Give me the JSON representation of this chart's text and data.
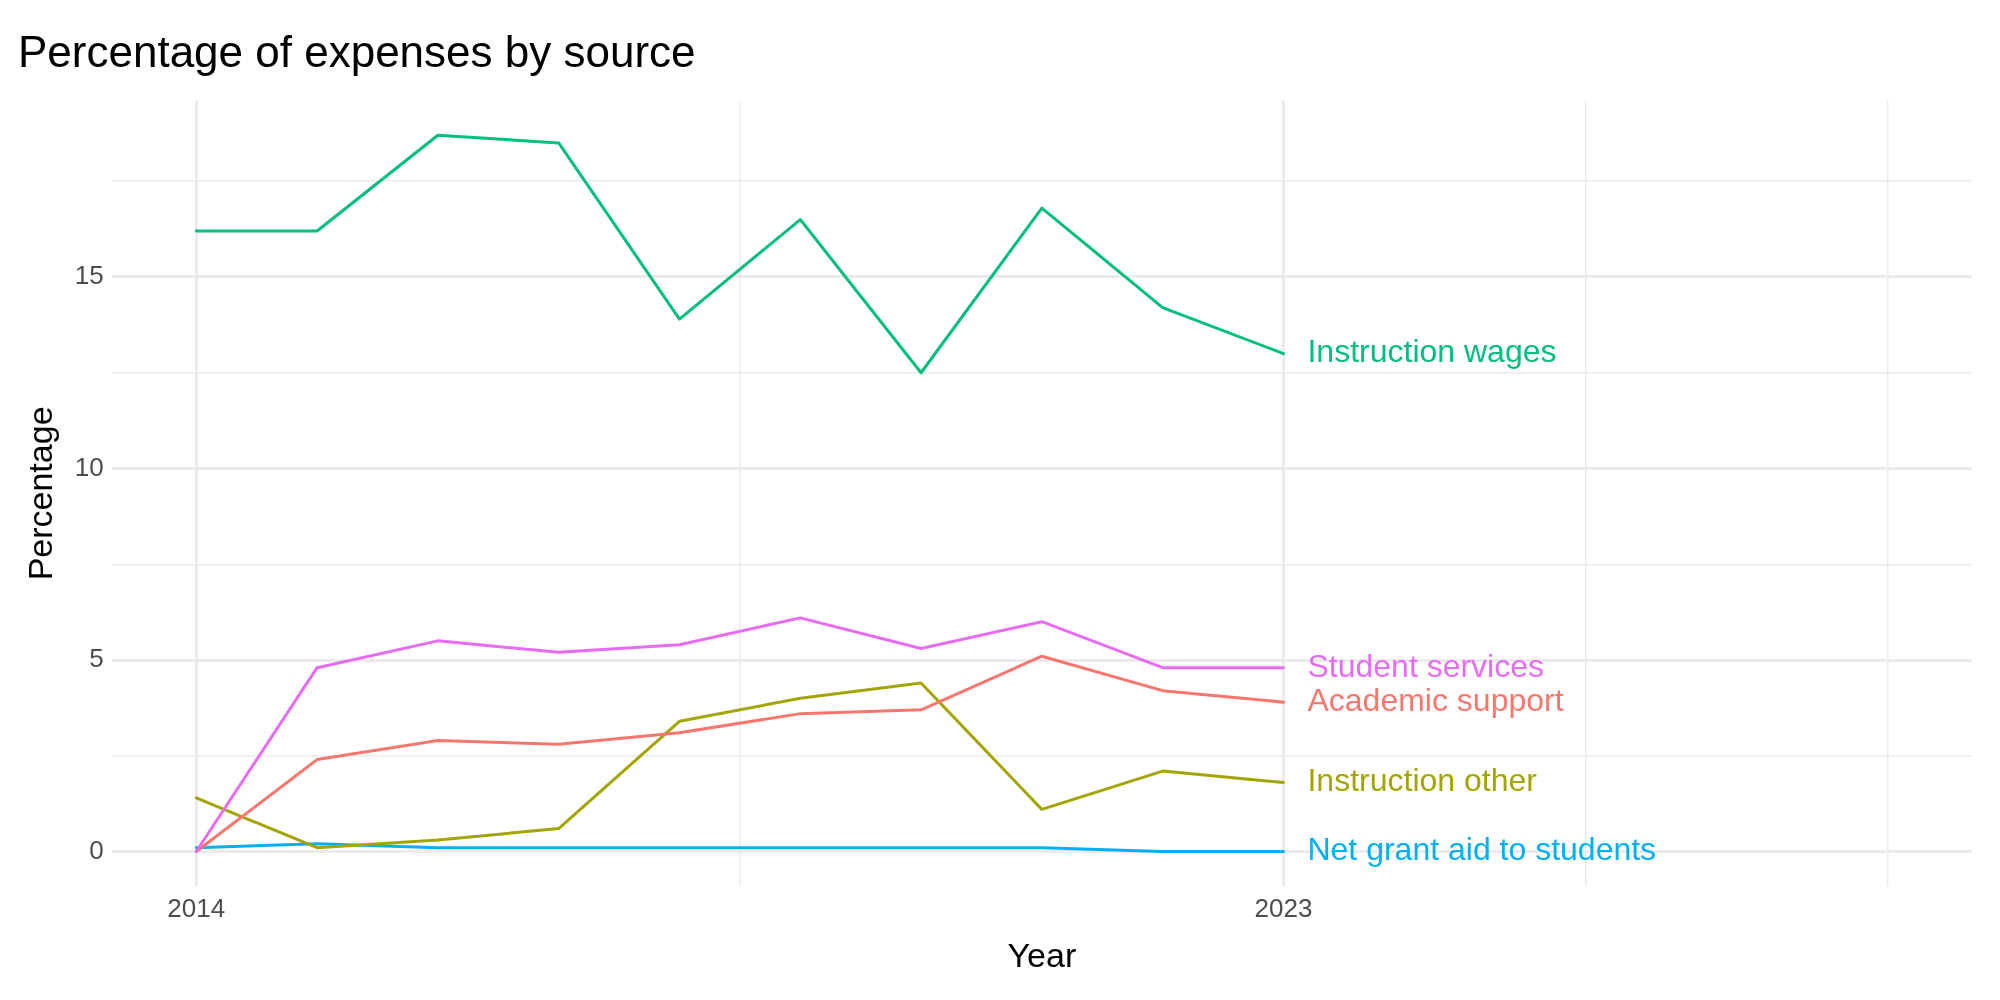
{
  "chart_data": {
    "type": "line",
    "title": "Percentage of expenses by source",
    "xlabel": "Year",
    "ylabel": "Percentage",
    "x": [
      2014,
      2015,
      2016,
      2017,
      2018,
      2019,
      2020,
      2021,
      2022,
      2023
    ],
    "series": [
      {
        "name": "Instruction wages",
        "color": "#00BF7D",
        "values": [
          16.2,
          16.2,
          18.7,
          18.5,
          13.9,
          16.5,
          12.5,
          16.8,
          14.2,
          13.0
        ]
      },
      {
        "name": "Student services",
        "color": "#E76BF3",
        "values": [
          0.0,
          4.8,
          5.5,
          5.2,
          5.4,
          6.1,
          5.3,
          6.0,
          4.8,
          4.8
        ]
      },
      {
        "name": "Academic support",
        "color": "#F8766D",
        "values": [
          0.0,
          2.4,
          2.9,
          2.8,
          3.1,
          3.6,
          3.7,
          5.1,
          4.2,
          3.9
        ]
      },
      {
        "name": "Instruction other",
        "color": "#A3A500",
        "values": [
          1.4,
          0.1,
          0.3,
          0.6,
          3.4,
          4.0,
          4.4,
          1.1,
          2.1,
          1.8
        ]
      },
      {
        "name": "Net grant aid to students",
        "color": "#00B0F6",
        "values": [
          0.1,
          0.2,
          0.1,
          0.1,
          0.1,
          0.1,
          0.1,
          0.1,
          0.0,
          0.0
        ]
      }
    ],
    "xlim": [
      2013.3,
      2028.7
    ],
    "xticks": [
      2014,
      {
        "value": 2018.5,
        "label": null
      },
      2023,
      {
        "value": 2025.5,
        "label": null
      },
      {
        "value": 2028,
        "label": null
      }
    ],
    "ylim": [
      -0.9,
      19.6
    ],
    "yticks": [
      0,
      {
        "value": 2.5,
        "label": null
      },
      5,
      {
        "value": 7.5,
        "label": null
      },
      10,
      {
        "value": 12.5,
        "label": null
      },
      15,
      {
        "value": 17.5,
        "label": null
      }
    ],
    "grid": true,
    "legend": false,
    "marker": "none",
    "line_style": "solid"
  }
}
